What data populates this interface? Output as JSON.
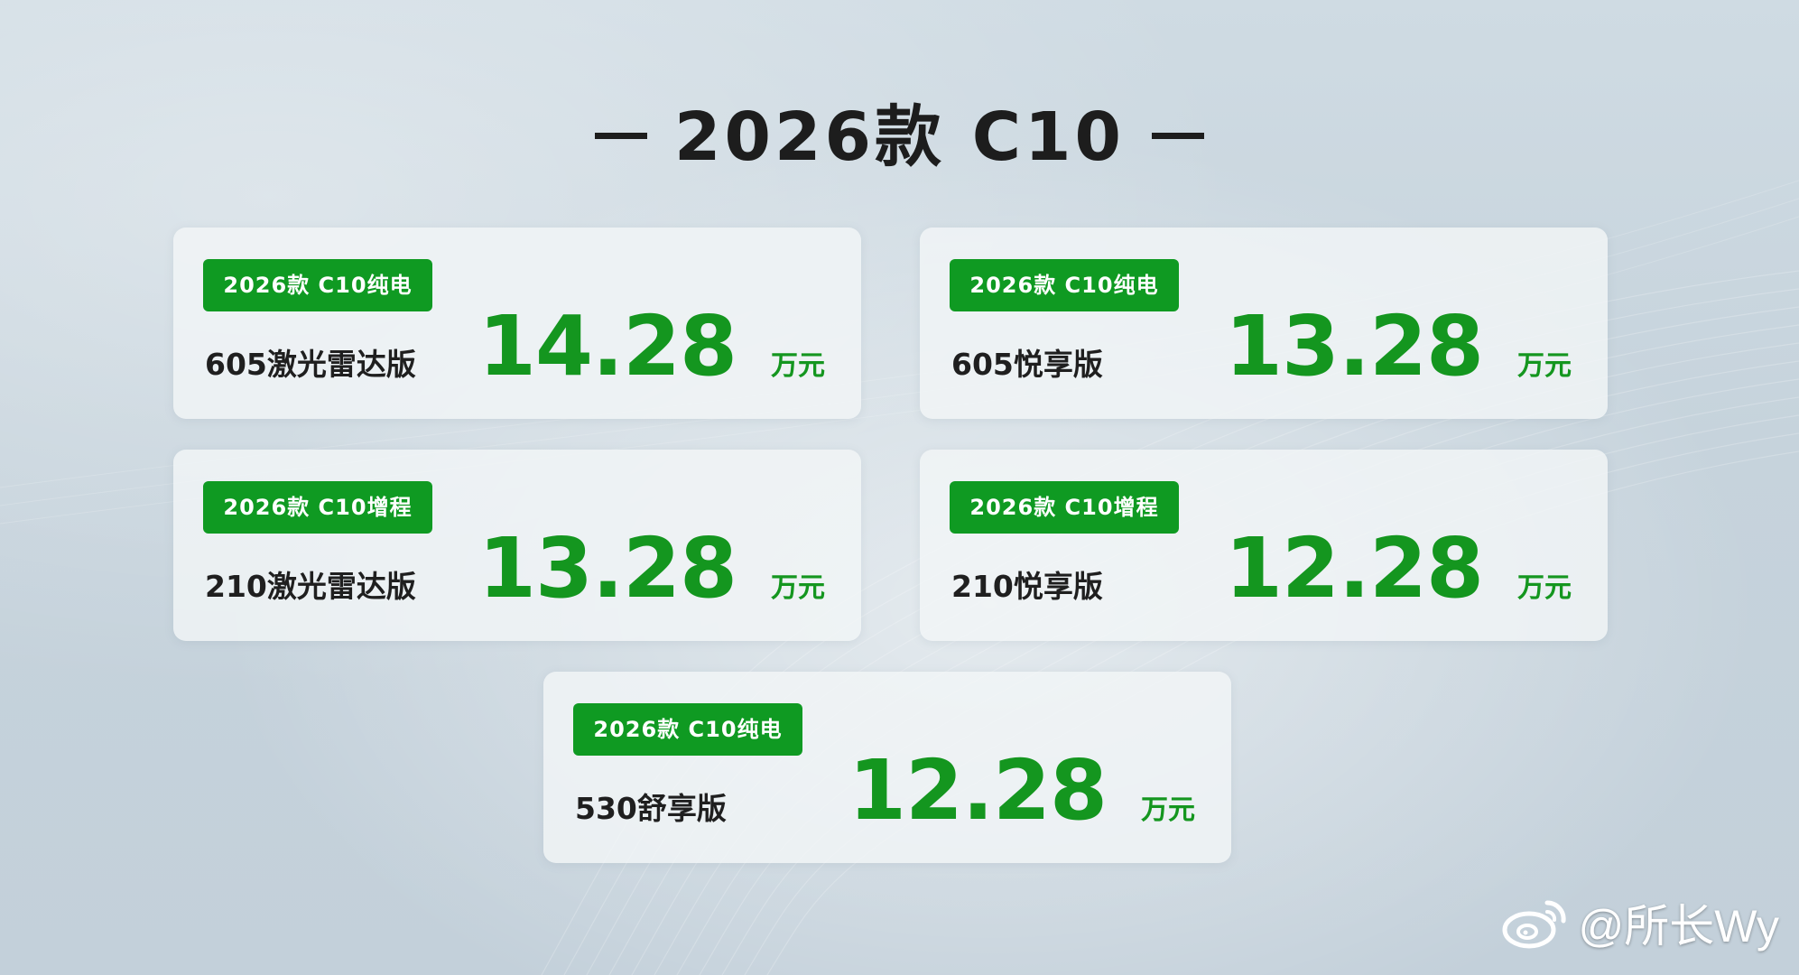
{
  "title": {
    "text": "2026款 C10"
  },
  "cards": [
    {
      "badge": "2026款 C10纯电",
      "trim": "605激光雷达版",
      "price": "14.28",
      "unit": "万元"
    },
    {
      "badge": "2026款 C10纯电",
      "trim": "605悦享版",
      "price": "13.28",
      "unit": "万元"
    },
    {
      "badge": "2026款 C10增程",
      "trim": "210激光雷达版",
      "price": "13.28",
      "unit": "万元"
    },
    {
      "badge": "2026款 C10增程",
      "trim": "210悦享版",
      "price": "12.28",
      "unit": "万元"
    },
    {
      "badge": "2026款 C10纯电",
      "trim": "530舒享版",
      "price": "12.28",
      "unit": "万元"
    }
  ],
  "watermark": {
    "text": "@所长Wy",
    "icon": "weibo-icon"
  },
  "colors": {
    "accent_green": "#14961f",
    "badge_green": "#0f9a22",
    "title_dark": "#1d1d1d"
  }
}
